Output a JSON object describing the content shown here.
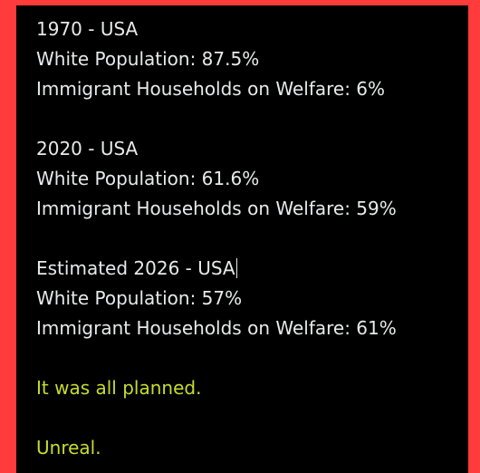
{
  "post": {
    "block_1970": {
      "heading": "1970 - USA",
      "white_population": "White Population: 87.5%",
      "welfare": "Immigrant Households on Welfare: 6%"
    },
    "block_2020": {
      "heading": "2020 - USA",
      "white_population": "White Population: 61.6%",
      "welfare": "Immigrant Households on Welfare: 59%"
    },
    "block_2026": {
      "heading": "Estimated 2026 - USA",
      "white_population": "White Population: 57%",
      "welfare": "Immigrant Households on Welfare: 61%"
    },
    "closing_1": "It was all planned.",
    "closing_2": "Unreal.",
    "colors": {
      "text": "#e7e9ea",
      "accent": "#c8dc2c",
      "frame": "#ff3b3b",
      "background": "#000000"
    }
  }
}
